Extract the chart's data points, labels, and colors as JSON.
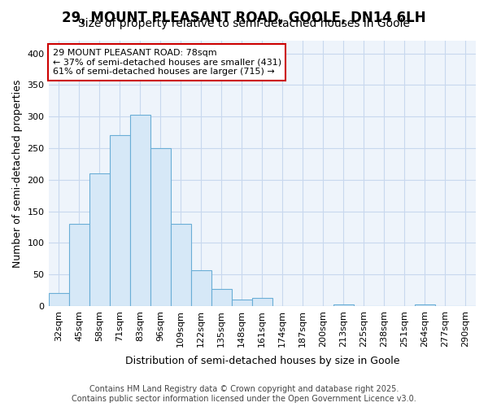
{
  "title_line1": "29, MOUNT PLEASANT ROAD, GOOLE, DN14 6LH",
  "title_line2": "Size of property relative to semi-detached houses in Goole",
  "xlabel": "Distribution of semi-detached houses by size in Goole",
  "ylabel": "Number of semi-detached properties",
  "bar_labels": [
    "32sqm",
    "45sqm",
    "58sqm",
    "71sqm",
    "83sqm",
    "96sqm",
    "109sqm",
    "122sqm",
    "135sqm",
    "148sqm",
    "161sqm",
    "174sqm",
    "187sqm",
    "200sqm",
    "213sqm",
    "225sqm",
    "238sqm",
    "251sqm",
    "264sqm",
    "277sqm",
    "290sqm"
  ],
  "bar_values": [
    20,
    130,
    210,
    270,
    303,
    250,
    130,
    57,
    27,
    10,
    13,
    0,
    0,
    0,
    3,
    0,
    0,
    0,
    3,
    0,
    0
  ],
  "bar_color": "#d6e8f7",
  "bar_edge_color": "#6aaed6",
  "grid_color": "#c8d8ee",
  "background_color": "#ffffff",
  "plot_bg_color": "#eef4fb",
  "annotation_text": "29 MOUNT PLEASANT ROAD: 78sqm\n← 37% of semi-detached houses are smaller (431)\n61% of semi-detached houses are larger (715) →",
  "annotation_box_color": "#ffffff",
  "annotation_border_color": "#cc0000",
  "ylim": [
    0,
    420
  ],
  "yticks": [
    0,
    50,
    100,
    150,
    200,
    250,
    300,
    350,
    400
  ],
  "footer_line1": "Contains HM Land Registry data © Crown copyright and database right 2025.",
  "footer_line2": "Contains public sector information licensed under the Open Government Licence v3.0.",
  "title_fontsize": 12,
  "subtitle_fontsize": 10,
  "axis_label_fontsize": 9,
  "tick_fontsize": 8,
  "annotation_fontsize": 8,
  "footer_fontsize": 7
}
